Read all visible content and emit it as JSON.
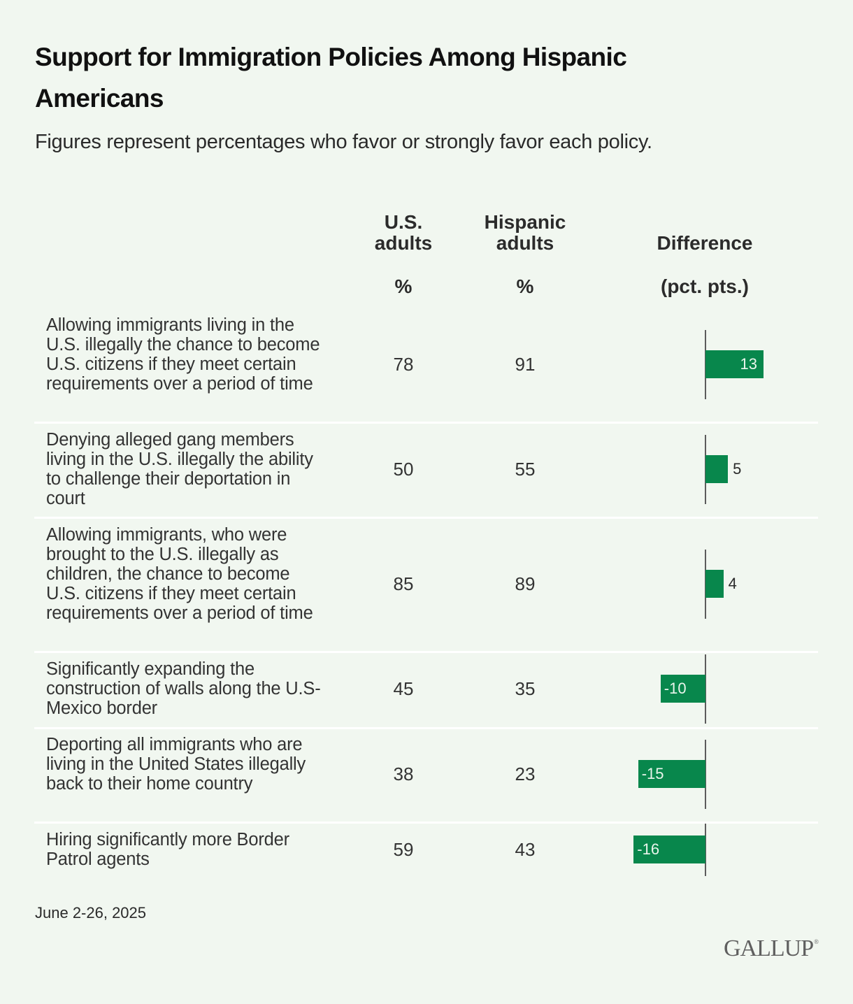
{
  "title": "Support for Immigration Policies Among Hispanic Americans",
  "subtitle": "Figures represent percentages who favor or strongly favor each policy.",
  "columns": {
    "us_adults": {
      "line1": "U.S.",
      "line2": "adults",
      "unit": "%"
    },
    "hispanic_adults": {
      "line1": "Hispanic",
      "line2": "adults",
      "unit": "%"
    },
    "difference": {
      "line1": "Difference",
      "unit": "(pct. pts.)"
    }
  },
  "footer": {
    "date": "June 2-26, 2025",
    "logo": "GALLUP",
    "logo_mark": "®"
  },
  "colors": {
    "background": "#f1f7f0",
    "bar": "#08874c",
    "separator": "#ffffff",
    "axis": "#5c5c5c"
  },
  "chart_data": {
    "type": "table",
    "title": "Support for Immigration Policies Among Hispanic Americans",
    "subtitle": "Figures represent percentages who favor or strongly favor each policy.",
    "columns": [
      "U.S. adults %",
      "Hispanic adults %",
      "Difference (pct. pts.)"
    ],
    "rows": [
      {
        "label": "Allowing immigrants living in the U.S. illegally the chance to become U.S. citizens if they meet certain requirements over a period of time",
        "us": 78,
        "hispanic": 91,
        "diff": 13
      },
      {
        "label": "Denying alleged gang members living in the U.S. illegally the ability to challenge their deportation in court",
        "us": 50,
        "hispanic": 55,
        "diff": 5
      },
      {
        "label": "Allowing immigrants, who were brought to the U.S. illegally as children, the chance to become U.S. citizens if they meet certain requirements over a period of time",
        "us": 85,
        "hispanic": 89,
        "diff": 4
      },
      {
        "label": "Significantly expanding the construction of walls along the U.S-Mexico border",
        "us": 45,
        "hispanic": 35,
        "diff": -10
      },
      {
        "label": "Deporting all immigrants who are living in the United States illegally back to their home country",
        "us": 38,
        "hispanic": 23,
        "diff": -15
      },
      {
        "label": "Hiring significantly more Border Patrol agents",
        "us": 59,
        "hispanic": 43,
        "diff": -16
      }
    ],
    "diff_axis_zero": 0,
    "note": "June 2-26, 2025"
  }
}
